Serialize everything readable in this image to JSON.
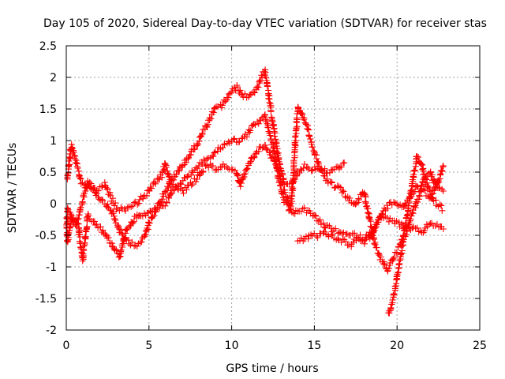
{
  "chart_data": {
    "type": "scatter",
    "title": "Day 105 of 2020, Sidereal Day-to-day VTEC variation (SDTVAR) for receiver stas",
    "xlabel": "GPS time / hours",
    "ylabel": "SDTVAR / TECUs",
    "xlim": [
      0,
      25
    ],
    "ylim": [
      -2,
      2.5
    ],
    "xticks": [
      0,
      5,
      10,
      15,
      20,
      25
    ],
    "xtick_labels": [
      "0",
      "5",
      "10",
      "15",
      "20",
      "25"
    ],
    "yticks": [
      -2,
      -1.5,
      -1,
      -0.5,
      0,
      0.5,
      1,
      1.5,
      2,
      2.5
    ],
    "ytick_labels": [
      "-2",
      "-1.5",
      "-1",
      "-0.5",
      "0",
      "0.5",
      "1",
      "1.5",
      "2",
      "2.5"
    ],
    "grid": true,
    "marker": "plus",
    "marker_color": "#ff0000",
    "series": [
      {
        "name": "trace-1",
        "points": [
          [
            0.05,
            0.4
          ],
          [
            0.3,
            0.92
          ],
          [
            0.6,
            0.65
          ],
          [
            0.9,
            0.35
          ],
          [
            1.2,
            0.3
          ],
          [
            1.6,
            0.25
          ],
          [
            2.0,
            0.1
          ],
          [
            2.4,
            0.0
          ],
          [
            2.8,
            -0.15
          ],
          [
            3.1,
            -0.35
          ],
          [
            3.5,
            -0.55
          ],
          [
            3.9,
            -0.62
          ],
          [
            4.3,
            -0.65
          ],
          [
            4.7,
            -0.55
          ],
          [
            5.0,
            -0.3
          ],
          [
            5.4,
            -0.1
          ],
          [
            5.8,
            0.1
          ],
          [
            6.2,
            0.3
          ],
          [
            6.6,
            0.45
          ],
          [
            7.0,
            0.6
          ],
          [
            7.4,
            0.75
          ],
          [
            7.8,
            0.9
          ],
          [
            8.2,
            1.1
          ],
          [
            8.6,
            1.3
          ],
          [
            9.0,
            1.5
          ],
          [
            9.4,
            1.55
          ],
          [
            9.8,
            1.7
          ],
          [
            10.3,
            1.85
          ],
          [
            10.7,
            1.7
          ],
          [
            11.1,
            1.72
          ],
          [
            11.4,
            1.78
          ],
          [
            12.0,
            2.1
          ],
          [
            12.3,
            1.6
          ],
          [
            12.6,
            1.1
          ],
          [
            12.9,
            0.6
          ],
          [
            13.2,
            0.35
          ],
          [
            13.6,
            0.3
          ],
          [
            14.0,
            0.5
          ],
          [
            14.4,
            0.6
          ],
          [
            14.8,
            0.55
          ],
          [
            15.3,
            0.55
          ],
          [
            15.8,
            0.5
          ],
          [
            16.3,
            0.55
          ],
          [
            16.8,
            0.65
          ]
        ]
      },
      {
        "name": "trace-2",
        "points": [
          [
            0.1,
            -0.1
          ],
          [
            0.4,
            -0.25
          ],
          [
            0.7,
            -0.3
          ],
          [
            1.0,
            -0.9
          ],
          [
            1.3,
            -0.2
          ],
          [
            1.7,
            -0.3
          ],
          [
            2.1,
            -0.4
          ],
          [
            2.5,
            -0.55
          ],
          [
            2.9,
            -0.7
          ],
          [
            3.2,
            -0.85
          ],
          [
            3.6,
            -0.45
          ],
          [
            4.0,
            -0.3
          ],
          [
            4.4,
            -0.15
          ],
          [
            4.8,
            -0.2
          ],
          [
            5.2,
            -0.1
          ],
          [
            5.6,
            -0.05
          ],
          [
            6.0,
            0.0
          ],
          [
            6.4,
            0.2
          ],
          [
            6.8,
            0.3
          ],
          [
            7.2,
            0.4
          ],
          [
            7.6,
            0.5
          ],
          [
            8.0,
            0.6
          ],
          [
            8.4,
            0.7
          ],
          [
            8.8,
            0.75
          ],
          [
            9.2,
            0.85
          ],
          [
            9.6,
            0.95
          ],
          [
            10.0,
            1.0
          ],
          [
            10.4,
            1.0
          ],
          [
            10.8,
            1.05
          ],
          [
            11.2,
            1.2
          ],
          [
            11.6,
            1.3
          ],
          [
            12.0,
            1.4
          ],
          [
            12.3,
            1.1
          ],
          [
            12.6,
            0.8
          ],
          [
            12.9,
            0.3
          ],
          [
            13.2,
            0.05
          ],
          [
            13.6,
            -0.15
          ],
          [
            14.0,
            -0.1
          ],
          [
            14.4,
            -0.1
          ],
          [
            14.8,
            -0.15
          ],
          [
            15.2,
            -0.25
          ],
          [
            15.6,
            -0.35
          ],
          [
            16.0,
            -0.4
          ],
          [
            16.5,
            -0.45
          ],
          [
            17.0,
            -0.5
          ],
          [
            17.5,
            -0.5
          ],
          [
            18.0,
            -0.55
          ],
          [
            18.5,
            -0.45
          ],
          [
            19.0,
            -0.2
          ],
          [
            19.5,
            -0.25
          ],
          [
            20.0,
            -0.3
          ],
          [
            20.5,
            -0.4
          ],
          [
            21.0,
            -0.4
          ],
          [
            21.5,
            -0.45
          ],
          [
            22.0,
            -0.3
          ],
          [
            22.5,
            -0.35
          ],
          [
            22.8,
            -0.4
          ]
        ]
      },
      {
        "name": "trace-3",
        "points": [
          [
            0.05,
            -0.1
          ],
          [
            0.05,
            -0.6
          ],
          [
            0.3,
            -0.25
          ],
          [
            0.6,
            -0.35
          ],
          [
            1.3,
            0.35
          ],
          [
            1.8,
            0.2
          ],
          [
            2.3,
            0.3
          ],
          [
            2.7,
            0.1
          ],
          [
            3.0,
            -0.05
          ],
          [
            3.4,
            -0.1
          ],
          [
            3.8,
            -0.05
          ],
          [
            4.2,
            0.0
          ],
          [
            4.6,
            0.1
          ],
          [
            5.0,
            0.2
          ],
          [
            5.4,
            0.35
          ],
          [
            5.8,
            0.45
          ],
          [
            6.0,
            0.65
          ],
          [
            6.3,
            0.3
          ],
          [
            6.7,
            0.25
          ],
          [
            7.1,
            0.2
          ],
          [
            7.5,
            0.3
          ],
          [
            7.9,
            0.4
          ],
          [
            8.3,
            0.55
          ],
          [
            8.7,
            0.6
          ],
          [
            9.1,
            0.55
          ],
          [
            9.5,
            0.6
          ],
          [
            9.9,
            0.55
          ],
          [
            10.3,
            0.5
          ],
          [
            10.5,
            0.3
          ],
          [
            10.8,
            0.5
          ],
          [
            11.2,
            0.7
          ],
          [
            11.6,
            0.85
          ],
          [
            12.0,
            0.95
          ],
          [
            12.4,
            0.75
          ],
          [
            12.8,
            0.55
          ],
          [
            13.2,
            0.2
          ],
          [
            13.6,
            -0.05
          ],
          [
            14.0,
            1.55
          ],
          [
            14.3,
            1.4
          ],
          [
            14.6,
            1.2
          ],
          [
            14.9,
            0.9
          ],
          [
            15.3,
            0.6
          ],
          [
            15.7,
            0.4
          ],
          [
            16.1,
            0.3
          ],
          [
            16.5,
            0.25
          ],
          [
            17.0,
            0.1
          ],
          [
            17.5,
            0.0
          ],
          [
            18.0,
            0.2
          ],
          [
            18.3,
            -0.2
          ],
          [
            18.7,
            -0.7
          ],
          [
            19.1,
            -0.9
          ],
          [
            19.4,
            -1.05
          ],
          [
            19.7,
            -0.9
          ],
          [
            20.0,
            -0.75
          ],
          [
            20.3,
            -0.6
          ],
          [
            20.6,
            -0.2
          ],
          [
            20.9,
            0.3
          ],
          [
            21.2,
            0.75
          ],
          [
            21.5,
            0.6
          ],
          [
            21.8,
            0.3
          ],
          [
            22.1,
            0.1
          ],
          [
            22.4,
            0.3
          ],
          [
            22.8,
            0.6
          ]
        ]
      },
      {
        "name": "trace-4",
        "points": [
          [
            14.0,
            -0.6
          ],
          [
            14.4,
            -0.55
          ],
          [
            14.8,
            -0.5
          ],
          [
            15.2,
            -0.5
          ],
          [
            15.6,
            -0.45
          ],
          [
            16.0,
            -0.5
          ],
          [
            16.4,
            -0.55
          ],
          [
            16.8,
            -0.6
          ],
          [
            17.2,
            -0.65
          ],
          [
            17.6,
            -0.55
          ],
          [
            18.0,
            -0.6
          ],
          [
            18.4,
            -0.5
          ],
          [
            18.8,
            -0.3
          ],
          [
            19.2,
            -0.1
          ],
          [
            19.6,
            0.0
          ],
          [
            20.0,
            0.0
          ],
          [
            20.4,
            -0.05
          ],
          [
            20.8,
            0.1
          ],
          [
            21.2,
            0.3
          ],
          [
            21.6,
            0.2
          ],
          [
            22.0,
            0.1
          ],
          [
            22.4,
            0.0
          ],
          [
            22.8,
            -0.1
          ],
          [
            19.5,
            -1.75
          ],
          [
            19.8,
            -1.45
          ],
          [
            20.1,
            -1.0
          ],
          [
            20.4,
            -0.6
          ],
          [
            20.7,
            -0.35
          ],
          [
            21.0,
            -0.1
          ],
          [
            21.3,
            0.1
          ],
          [
            21.6,
            0.4
          ],
          [
            22.0,
            0.5
          ],
          [
            22.4,
            0.25
          ],
          [
            22.8,
            0.2
          ]
        ]
      }
    ]
  }
}
